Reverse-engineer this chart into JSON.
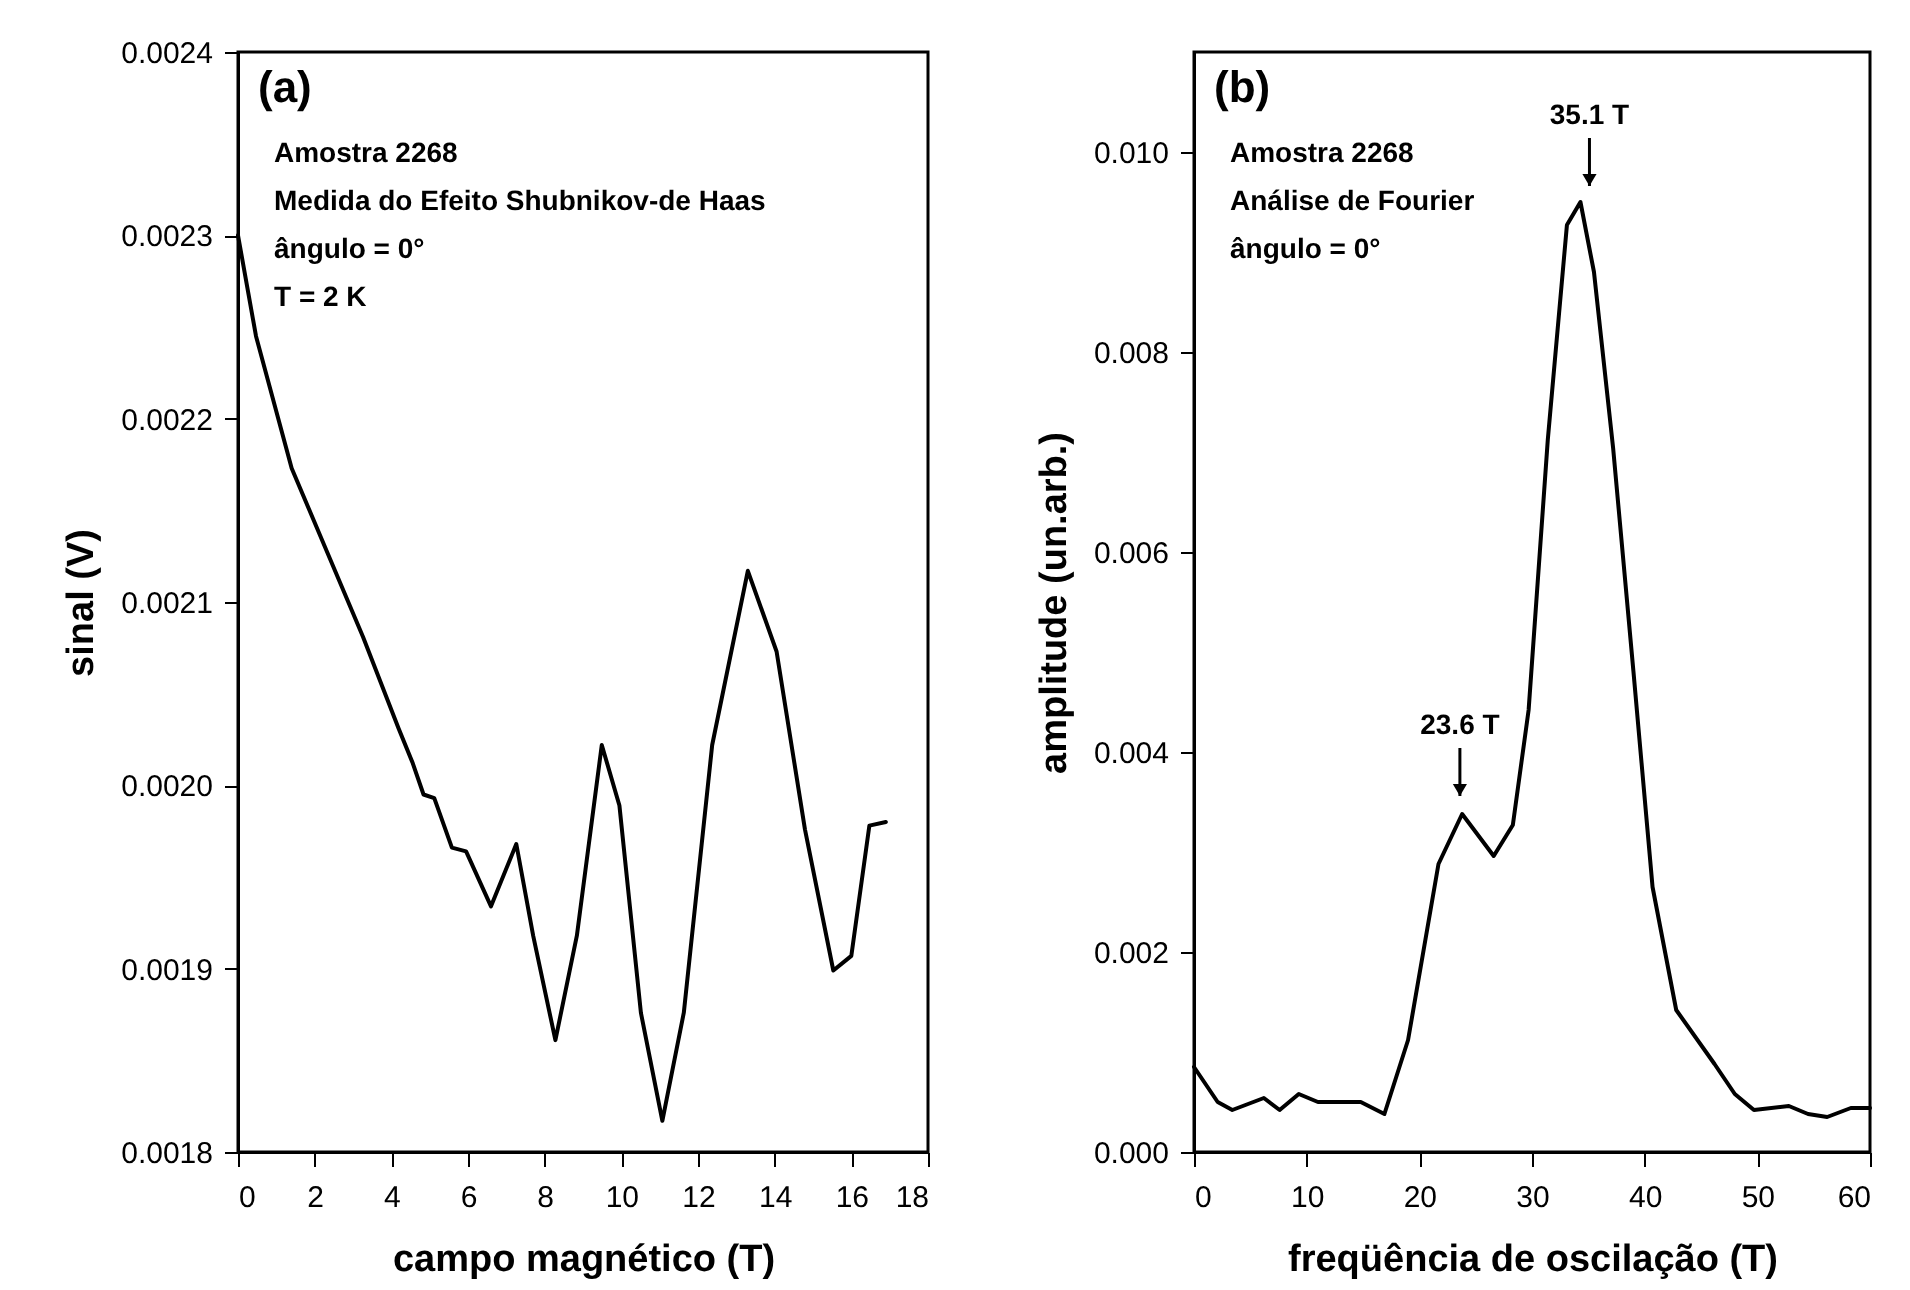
{
  "chart_data": [
    {
      "type": "line",
      "xlabel": "campo magnético (T)",
      "ylabel": "sinal (V)",
      "grid": false,
      "legend": false,
      "marker": "none",
      "line_style": "solid",
      "xlim": [
        0,
        18
      ],
      "xticks": [
        0,
        2,
        4,
        6,
        8,
        10,
        12,
        14,
        16,
        18
      ],
      "ylim": [
        0.0018,
        0.0024
      ],
      "yticks": [
        {
          "value": 0.0018,
          "label": "0.0018"
        },
        {
          "value": 0.0019,
          "label": "0.0019"
        },
        {
          "value": 0.002,
          "label": "0.0020"
        },
        {
          "value": 0.0021,
          "label": "0.0021"
        },
        {
          "value": 0.0022,
          "label": "0.0022"
        },
        {
          "value": 0.0023,
          "label": "0.0023"
        },
        {
          "value": 0.0024,
          "label": "0.0024"
        }
      ],
      "annotations": [
        "(a)",
        "Amostra 2268",
        "Medida do Efeito Shubnikov-de Haas",
        "ângulo = 0°",
        "T = 2 K"
      ],
      "series": [
        {
          "color": "#000000",
          "x": [
            0,
            0.47,
            1.4,
            2.33,
            3.26,
            4.19,
            4.56,
            4.84,
            5.12,
            5.58,
            5.95,
            6.6,
            7.26,
            7.7,
            8.28,
            8.84,
            9.49,
            9.95,
            10.51,
            11.07,
            11.63,
            12.37,
            13.3,
            14.05,
            14.79,
            15.53,
            16,
            16.47,
            16.9
          ],
          "values": [
            0.0023,
            0.002245,
            0.002173,
            0.002127,
            0.002081,
            0.002031,
            0.002012,
            0.001995,
            0.001993,
            0.001966,
            0.001964,
            0.001934,
            0.001968,
            0.001918,
            0.001861,
            0.001918,
            0.002022,
            0.001989,
            0.001876,
            0.001817,
            0.001876,
            0.002022,
            0.002117,
            0.002073,
            0.001976,
            0.001899,
            0.001907,
            0.001978,
            0.00198
          ]
        }
      ]
    },
    {
      "type": "line",
      "xlabel": "freqüência de oscilação (T)",
      "ylabel": "amplitude (un.arb.)",
      "grid": false,
      "legend": false,
      "marker": "none",
      "line_style": "solid",
      "xlim": [
        0,
        60
      ],
      "xticks": [
        0,
        10,
        20,
        30,
        40,
        50,
        60
      ],
      "ylim": [
        0,
        0.011
      ],
      "yticks": [
        {
          "value": 0,
          "label": "0.000"
        },
        {
          "value": 0.002,
          "label": "0.002"
        },
        {
          "value": 0.004,
          "label": "0.004"
        },
        {
          "value": 0.006,
          "label": "0.006"
        },
        {
          "value": 0.008,
          "label": "0.008"
        },
        {
          "value": 0.01,
          "label": "0.010"
        }
      ],
      "annotations": [
        "(b)",
        "Amostra 2268",
        "Análise de Fourier",
        "ângulo = 0°",
        {
          "text": "35.1 T",
          "x": 35.1,
          "y": 0.0095
        },
        {
          "text": "23.6 T",
          "x": 23.6,
          "y": 0.0034
        }
      ],
      "series": [
        {
          "color": "#000000",
          "x": [
            0,
            2.1,
            3.4,
            6.2,
            7.6,
            9.3,
            11,
            14.8,
            16.9,
            19,
            21.7,
            23.8,
            26.6,
            28.3,
            29.7,
            31.4,
            33.1,
            34.3,
            35.5,
            37.2,
            39,
            40.7,
            42.8,
            46.2,
            48,
            49.7,
            52.8,
            54.5,
            56.2,
            58.3,
            60
          ],
          "values": [
            0.00085,
            0.0005,
            0.00042,
            0.00054,
            0.00042,
            0.00058,
            0.0005,
            0.0005,
            0.00038,
            0.00112,
            0.00288,
            0.00338,
            0.00296,
            0.00327,
            0.00442,
            0.00712,
            0.00927,
            0.0095,
            0.0088,
            0.00704,
            0.00481,
            0.00265,
            0.00142,
            0.00088,
            0.00058,
            0.00042,
            0.00046,
            0.00038,
            0.00035,
            0.00044,
            0.00044
          ]
        }
      ]
    }
  ]
}
